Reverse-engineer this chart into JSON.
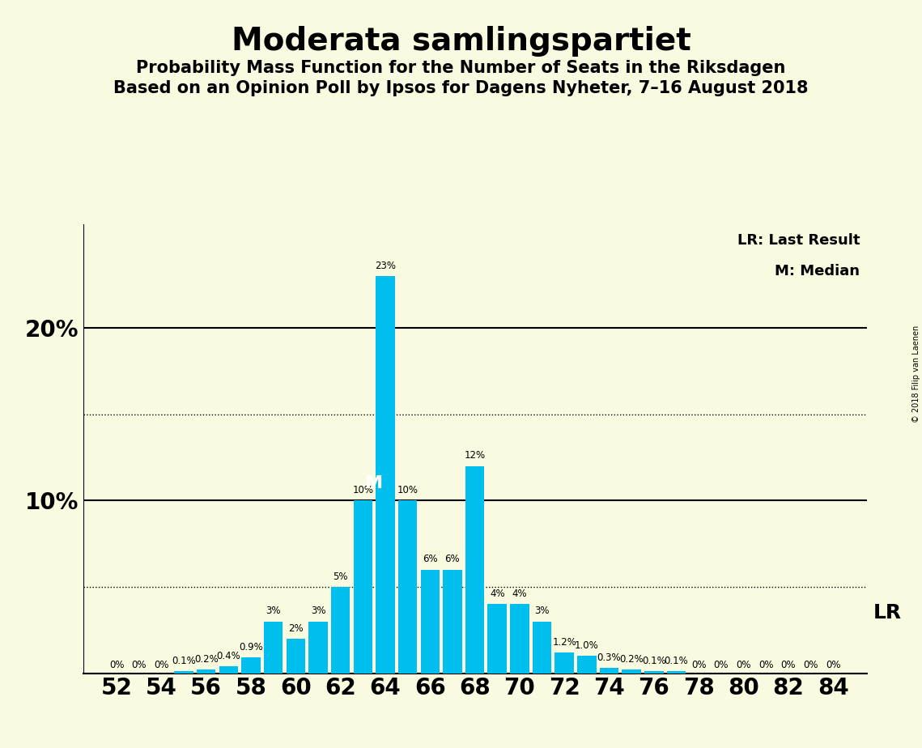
{
  "title": "Moderata samlingspartiet",
  "subtitle1": "Probability Mass Function for the Number of Seats in the Riksdagen",
  "subtitle2": "Based on an Opinion Poll by Ipsos for Dagens Nyheter, 7–16 August 2018",
  "copyright": "© 2018 Filip van Laenen",
  "seats": [
    52,
    53,
    54,
    55,
    56,
    57,
    58,
    59,
    60,
    61,
    62,
    63,
    64,
    65,
    66,
    67,
    68,
    69,
    70,
    71,
    72,
    73,
    74,
    75,
    76,
    77,
    78,
    79,
    80,
    81,
    82,
    83,
    84
  ],
  "probabilities": [
    0.0,
    0.0,
    0.0,
    0.1,
    0.2,
    0.4,
    0.9,
    3.0,
    2.0,
    3.0,
    5.0,
    10.0,
    23.0,
    10.0,
    6.0,
    6.0,
    12.0,
    4.0,
    4.0,
    3.0,
    1.2,
    1.0,
    0.3,
    0.2,
    0.1,
    0.1,
    0.0,
    0.0,
    0.0,
    0.0,
    0.0,
    0.0,
    0.0
  ],
  "bar_labels": [
    "0%",
    "0%",
    "0%",
    "0.1%",
    "0.2%",
    "0.4%",
    "0.9%",
    "3%",
    "2%",
    "3%",
    "5%",
    "10%",
    "23%",
    "10%",
    "6%",
    "6%",
    "12%",
    "4%",
    "4%",
    "3%",
    "1.2%",
    "1.0%",
    "0.3%",
    "0.2%",
    "0.1%",
    "0.1%",
    "0%",
    "0%",
    "0%",
    "0%",
    "0%",
    "0%",
    "0%"
  ],
  "bar_color": "#00BFEF",
  "background_color": "#FAFAE0",
  "dotted_lines": [
    5.0,
    15.0
  ],
  "median_seat": 64,
  "legend_lr": "LR: Last Result",
  "legend_m": "M: Median",
  "lr_label": "LR",
  "median_label": "M",
  "xlabel_seats": [
    52,
    54,
    56,
    58,
    60,
    62,
    64,
    66,
    68,
    70,
    72,
    74,
    76,
    78,
    80,
    82,
    84
  ],
  "title_fontsize": 28,
  "subtitle_fontsize": 15,
  "axis_fontsize": 20,
  "bar_label_fontsize": 8.5,
  "ylim": [
    0,
    26
  ],
  "xlim_left": 50.5,
  "xlim_right": 85.5
}
